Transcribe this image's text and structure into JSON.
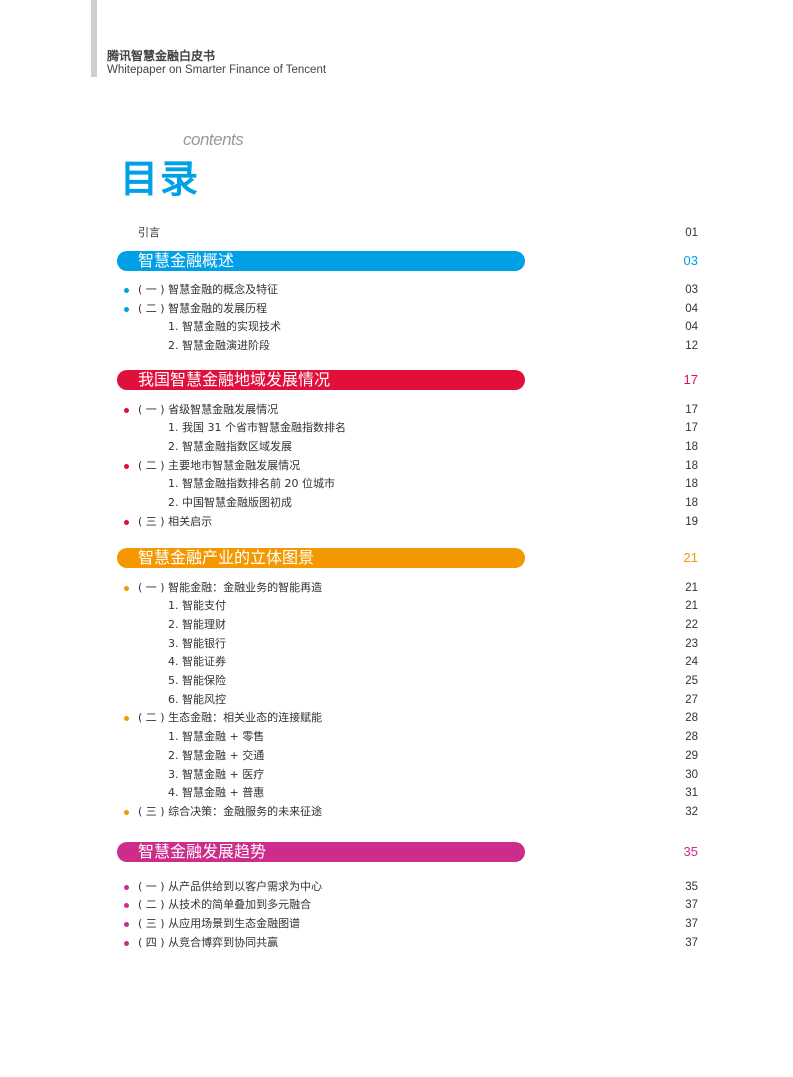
{
  "header": {
    "title_cn": "腾讯智慧金融白皮书",
    "title_en": "Whitepaper on Smarter Finance of Tencent"
  },
  "toc": {
    "contents_label": "contents",
    "title": "目录",
    "intro": {
      "label": "引言",
      "page": "01"
    },
    "sections": [
      {
        "title": "智慧金融概述",
        "page": "03",
        "color": "#00a0e6",
        "items": [
          {
            "label": "( 一 ) 智慧金融的概念及特征",
            "page": "03",
            "level": 1
          },
          {
            "label": "( 二 ) 智慧金融的发展历程",
            "page": "04",
            "level": 1
          },
          {
            "label": "1. 智慧金融的实现技术",
            "page": "04",
            "level": 2
          },
          {
            "label": "2. 智慧金融演进阶段",
            "page": "12",
            "level": 2
          }
        ]
      },
      {
        "title": "我国智慧金融地域发展情况",
        "page": "17",
        "color": "#e0103a",
        "items": [
          {
            "label": "( 一 ) 省级智慧金融发展情况",
            "page": "17",
            "level": 1
          },
          {
            "label": "1. 我国 31 个省市智慧金融指数排名",
            "page": "17",
            "level": 2
          },
          {
            "label": "2. 智慧金融指数区域发展",
            "page": "18",
            "level": 2
          },
          {
            "label": "( 二 ) 主要地市智慧金融发展情况",
            "page": "18",
            "level": 1
          },
          {
            "label": "1. 智慧金融指数排名前 20 位城市",
            "page": "18",
            "level": 2
          },
          {
            "label": "2. 中国智慧金融版图初成",
            "page": "18",
            "level": 2
          },
          {
            "label": "( 三 ) 相关启示",
            "page": "19",
            "level": 1
          }
        ]
      },
      {
        "title": "智慧金融产业的立体图景",
        "page": "21",
        "color": "#f39800",
        "items": [
          {
            "label": "( 一 ) 智能金融：金融业务的智能再造",
            "page": "21",
            "level": 1
          },
          {
            "label": "1. 智能支付",
            "page": "21",
            "level": 2
          },
          {
            "label": "2. 智能理财",
            "page": "22",
            "level": 2
          },
          {
            "label": "3. 智能银行",
            "page": "23",
            "level": 2
          },
          {
            "label": "4. 智能证券",
            "page": "24",
            "level": 2
          },
          {
            "label": "5. 智能保险",
            "page": "25",
            "level": 2
          },
          {
            "label": "6. 智能风控",
            "page": "27",
            "level": 2
          },
          {
            "label": "( 二 ) 生态金融：相关业态的连接赋能",
            "page": "28",
            "level": 1
          },
          {
            "label": "1. 智慧金融 + 零售",
            "page": "28",
            "level": 2
          },
          {
            "label": "2. 智慧金融 + 交通",
            "page": "29",
            "level": 2
          },
          {
            "label": "3. 智慧金融 + 医疗",
            "page": "30",
            "level": 2
          },
          {
            "label": "4. 智慧金融 + 普惠",
            "page": "31",
            "level": 2
          },
          {
            "label": "( 三 ) 综合决策：金融服务的未来征途",
            "page": "32",
            "level": 1
          }
        ]
      },
      {
        "title": "智慧金融发展趋势",
        "page": "35",
        "color": "#cc2c8a",
        "items": [
          {
            "label": "( 一 ) 从产品供给到以客户需求为中心",
            "page": "35",
            "level": 1
          },
          {
            "label": "( 二 ) 从技术的简单叠加到多元融合",
            "page": "37",
            "level": 1
          },
          {
            "label": "( 三 ) 从应用场景到生态金融图谱",
            "page": "37",
            "level": 1
          },
          {
            "label": "( 四 ) 从竞合博弈到协同共赢",
            "page": "37",
            "level": 1
          }
        ]
      }
    ]
  }
}
